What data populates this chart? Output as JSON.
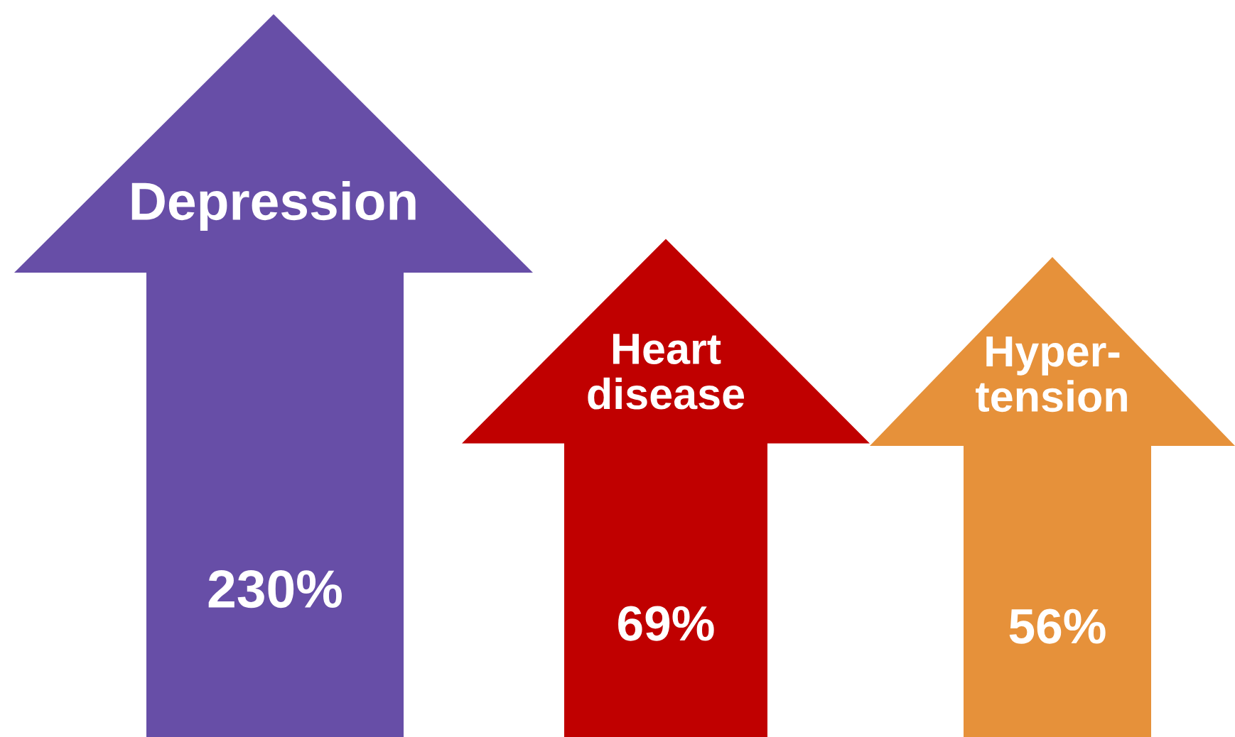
{
  "chart_data": {
    "type": "other",
    "categories": [
      "Depression",
      "Heart\ndisease",
      "Hyper-\ntension"
    ],
    "values": [
      230,
      69,
      56
    ],
    "value_labels": [
      "230%",
      "69%",
      "56%"
    ],
    "colors": [
      "#674ea7",
      "#c00000",
      "#e6913a"
    ]
  }
}
